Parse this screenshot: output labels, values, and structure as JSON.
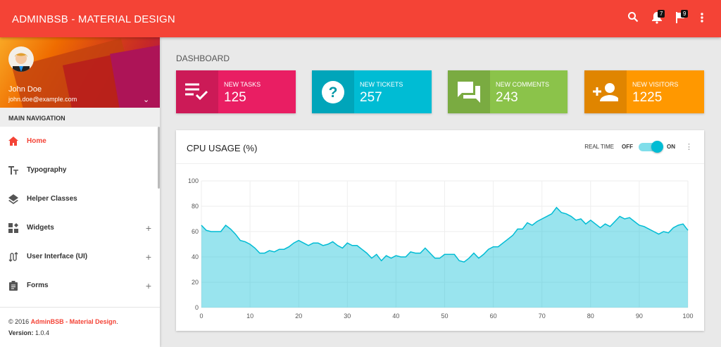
{
  "header": {
    "brand": "ADMINBSB - MATERIAL DESIGN",
    "notifications_count": "7",
    "tasks_count": "9",
    "icons": [
      "search-icon",
      "bell-icon",
      "flag-icon",
      "more-vert-icon"
    ]
  },
  "user": {
    "name": "John Doe",
    "email": "john.doe@example.com"
  },
  "sidebar": {
    "heading": "MAIN NAVIGATION",
    "items": [
      {
        "label": "Home",
        "icon": "home-icon",
        "active": true
      },
      {
        "label": "Typography",
        "icon": "text-fields-icon"
      },
      {
        "label": "Helper Classes",
        "icon": "layers-icon"
      },
      {
        "label": "Widgets",
        "icon": "widgets-icon",
        "expand": "+"
      },
      {
        "label": "User Interface (UI)",
        "icon": "swap-icon",
        "expand": "+"
      },
      {
        "label": "Forms",
        "icon": "clipboard-icon",
        "expand": "+"
      }
    ],
    "footer": {
      "copyright": "© 2016 ",
      "brand": "AdminBSB - Material Design",
      "dot": ".",
      "version_label": "Version: ",
      "version": "1.0.4"
    }
  },
  "page": {
    "title": "DASHBOARD"
  },
  "cards": [
    {
      "label": "NEW TASKS",
      "value": "125",
      "color": "#E91E63",
      "icon": "playlist-check-icon"
    },
    {
      "label": "NEW TICKETS",
      "value": "257",
      "color": "#00BCD4",
      "icon": "help-icon"
    },
    {
      "label": "NEW COMMENTS",
      "value": "243",
      "color": "#8BC34A",
      "icon": "forum-icon"
    },
    {
      "label": "NEW VISITORS",
      "value": "1225",
      "color": "#FF9800",
      "icon": "person-add-icon"
    }
  ],
  "cpu": {
    "title": "CPU USAGE (%)",
    "realtime_label": "REAL TIME",
    "off": "OFF",
    "on": "ON",
    "realtime_on": true
  },
  "chart_data": {
    "type": "area",
    "title": "CPU USAGE (%)",
    "xlim": [
      0,
      100
    ],
    "ylim": [
      0,
      100
    ],
    "xticks": [
      0,
      10,
      20,
      30,
      40,
      50,
      60,
      70,
      80,
      90,
      100
    ],
    "yticks": [
      0,
      20,
      40,
      60,
      80,
      100
    ],
    "grid": true,
    "color": "#00BCD4",
    "y": [
      65,
      61,
      60,
      60,
      60,
      65,
      62,
      58,
      53,
      52,
      50,
      47,
      43,
      43,
      45,
      44,
      46,
      46,
      48,
      51,
      53,
      51,
      49,
      51,
      51,
      49,
      50,
      52,
      49,
      47,
      51,
      49,
      49,
      46,
      43,
      39,
      42,
      37,
      41,
      39,
      41,
      40,
      40,
      44,
      43,
      43,
      47,
      43,
      39,
      39,
      42,
      42,
      42,
      37,
      36,
      39,
      43,
      39,
      42,
      46,
      48,
      48,
      51,
      54,
      57,
      62,
      62,
      67,
      65,
      68,
      70,
      72,
      74,
      79,
      75,
      74,
      72,
      69,
      70,
      66,
      69,
      66,
      63,
      66,
      64,
      68,
      72,
      70,
      71,
      68,
      65,
      64,
      62,
      60,
      58,
      60,
      59,
      63,
      65,
      66,
      61
    ]
  }
}
